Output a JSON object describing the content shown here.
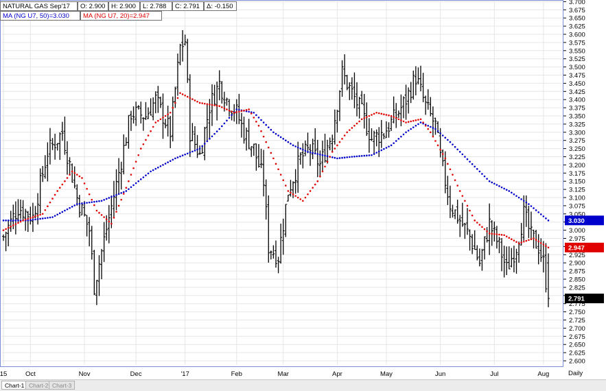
{
  "header": {
    "instrument": "NATURAL GAS Sep'17",
    "open": "O: 2.900",
    "high": "H: 2.900",
    "low": "L: 2.788",
    "close": "C: 2.791",
    "change": "Δ: -0.150",
    "ma50_label": "MA (NG U7, 50)=3.030",
    "ma20_label": "MA (NG U7, 20)=2.947"
  },
  "frequency": "Daily",
  "tabs": [
    {
      "label": "Chart-1",
      "active": true
    },
    {
      "label": "Chart-2",
      "active": false
    },
    {
      "label": "Chart-3",
      "active": false
    }
  ],
  "colors": {
    "price": "#000000",
    "ma50": "#0000cc",
    "ma20": "#e00000",
    "frame": "#7b8fd6",
    "grid": "#e6e6e6"
  },
  "chart_data": {
    "type": "line",
    "title": "NATURAL GAS Sep'17",
    "ylim": [
      2.575,
      3.7
    ],
    "y_ticks": [
      "2.575",
      "2.600",
      "2.625",
      "2.650",
      "2.675",
      "2.700",
      "2.725",
      "2.750",
      "2.775",
      "2.800",
      "2.825",
      "2.850",
      "2.875",
      "2.900",
      "2.925",
      "2.950",
      "2.975",
      "3.000",
      "3.025",
      "3.050",
      "3.075",
      "3.100",
      "3.125",
      "3.150",
      "3.175",
      "3.200",
      "3.225",
      "3.250",
      "3.275",
      "3.300",
      "3.325",
      "3.350",
      "3.375",
      "3.400",
      "3.425",
      "3.450",
      "3.475",
      "3.500",
      "3.525",
      "3.550",
      "3.575",
      "3.600",
      "3.625",
      "3.650",
      "3.675",
      "3.700"
    ],
    "x_months": [
      {
        "label": "15",
        "day": 0
      },
      {
        "label": "Oct",
        "day": 11
      },
      {
        "label": "Nov",
        "day": 33
      },
      {
        "label": "Dec",
        "day": 54
      },
      {
        "label": "'17",
        "day": 74
      },
      {
        "label": "Feb",
        "day": 95
      },
      {
        "label": "Mar",
        "day": 114
      },
      {
        "label": "Apr",
        "day": 136
      },
      {
        "label": "May",
        "day": 156
      },
      {
        "label": "Jun",
        "day": 178
      },
      {
        "label": "Jul",
        "day": 200
      },
      {
        "label": "Aug",
        "day": 220
      }
    ],
    "price_keypoints": [
      [
        0,
        2.98
      ],
      [
        6,
        3.07
      ],
      [
        12,
        3.04
      ],
      [
        18,
        3.24
      ],
      [
        24,
        3.3
      ],
      [
        30,
        3.1
      ],
      [
        35,
        3.0
      ],
      [
        37,
        2.83
      ],
      [
        41,
        2.97
      ],
      [
        46,
        3.14
      ],
      [
        52,
        3.36
      ],
      [
        58,
        3.35
      ],
      [
        62,
        3.4
      ],
      [
        68,
        3.3
      ],
      [
        72,
        3.56
      ],
      [
        74,
        3.58
      ],
      [
        76,
        3.3
      ],
      [
        80,
        3.23
      ],
      [
        84,
        3.38
      ],
      [
        88,
        3.45
      ],
      [
        91,
        3.4
      ],
      [
        95,
        3.36
      ],
      [
        98,
        3.3
      ],
      [
        102,
        3.25
      ],
      [
        106,
        3.15
      ],
      [
        108,
        2.95
      ],
      [
        112,
        2.92
      ],
      [
        116,
        3.12
      ],
      [
        121,
        3.22
      ],
      [
        125,
        3.25
      ],
      [
        129,
        3.2
      ],
      [
        134,
        3.3
      ],
      [
        138,
        3.48
      ],
      [
        142,
        3.42
      ],
      [
        146,
        3.36
      ],
      [
        150,
        3.28
      ],
      [
        155,
        3.3
      ],
      [
        160,
        3.35
      ],
      [
        164,
        3.4
      ],
      [
        168,
        3.47
      ],
      [
        172,
        3.38
      ],
      [
        176,
        3.32
      ],
      [
        178,
        3.22
      ],
      [
        182,
        3.08
      ],
      [
        186,
        3.03
      ],
      [
        190,
        2.98
      ],
      [
        194,
        2.9
      ],
      [
        198,
        3.02
      ],
      [
        202,
        2.95
      ],
      [
        205,
        2.88
      ],
      [
        209,
        2.95
      ],
      [
        212,
        3.05
      ],
      [
        215,
        2.98
      ],
      [
        218,
        2.95
      ],
      [
        220,
        2.9
      ],
      [
        222,
        2.79
      ]
    ],
    "last_close": 2.791,
    "series": [
      {
        "name": "MA (NG U7, 50)",
        "last": 3.03,
        "keypoints": [
          [
            0,
            3.03
          ],
          [
            10,
            3.03
          ],
          [
            20,
            3.04
          ],
          [
            30,
            3.08
          ],
          [
            40,
            3.09
          ],
          [
            50,
            3.12
          ],
          [
            60,
            3.18
          ],
          [
            70,
            3.22
          ],
          [
            80,
            3.25
          ],
          [
            88,
            3.31
          ],
          [
            95,
            3.37
          ],
          [
            102,
            3.36
          ],
          [
            110,
            3.3
          ],
          [
            118,
            3.26
          ],
          [
            124,
            3.24
          ],
          [
            130,
            3.23
          ],
          [
            136,
            3.22
          ],
          [
            142,
            3.225
          ],
          [
            150,
            3.23
          ],
          [
            158,
            3.26
          ],
          [
            164,
            3.3
          ],
          [
            170,
            3.33
          ],
          [
            176,
            3.31
          ],
          [
            182,
            3.27
          ],
          [
            190,
            3.21
          ],
          [
            198,
            3.15
          ],
          [
            206,
            3.12
          ],
          [
            214,
            3.08
          ],
          [
            222,
            3.03
          ]
        ]
      },
      {
        "name": "MA (NG U7, 20)",
        "last": 2.947,
        "keypoints": [
          [
            0,
            3.0
          ],
          [
            8,
            3.03
          ],
          [
            16,
            3.05
          ],
          [
            22,
            3.12
          ],
          [
            28,
            3.18
          ],
          [
            32,
            3.16
          ],
          [
            38,
            3.06
          ],
          [
            44,
            3.02
          ],
          [
            50,
            3.13
          ],
          [
            56,
            3.25
          ],
          [
            62,
            3.33
          ],
          [
            68,
            3.36
          ],
          [
            72,
            3.42
          ],
          [
            80,
            3.39
          ],
          [
            88,
            3.38
          ],
          [
            94,
            3.36
          ],
          [
            100,
            3.37
          ],
          [
            104,
            3.32
          ],
          [
            110,
            3.22
          ],
          [
            116,
            3.12
          ],
          [
            122,
            3.09
          ],
          [
            128,
            3.15
          ],
          [
            134,
            3.24
          ],
          [
            140,
            3.3
          ],
          [
            146,
            3.34
          ],
          [
            152,
            3.36
          ],
          [
            158,
            3.35
          ],
          [
            164,
            3.33
          ],
          [
            170,
            3.34
          ],
          [
            174,
            3.3
          ],
          [
            180,
            3.22
          ],
          [
            186,
            3.12
          ],
          [
            192,
            3.03
          ],
          [
            198,
            2.99
          ],
          [
            204,
            2.985
          ],
          [
            210,
            2.96
          ],
          [
            216,
            2.975
          ],
          [
            222,
            2.947
          ]
        ]
      }
    ]
  }
}
